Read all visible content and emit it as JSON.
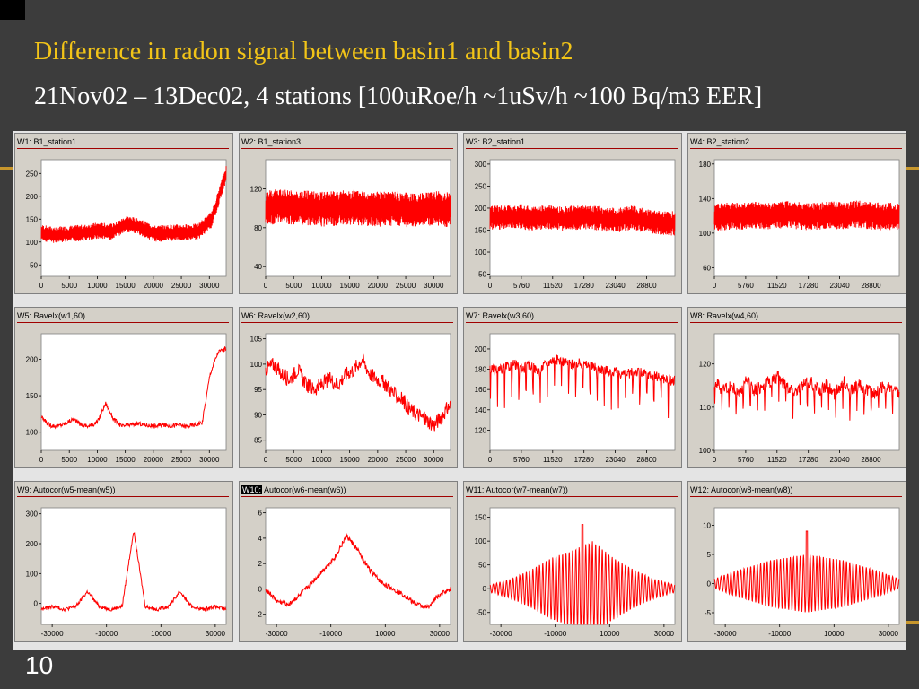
{
  "slide": {
    "title": "Difference in radon signal between basin1 and basin2",
    "subtitle": "21Nov02 – 13Dec02, 4 stations  [100uRoe/h ~1uSv/h ~100 Bq/m3 EER]",
    "page_number": "10"
  },
  "colors": {
    "background": "#3c3c3c",
    "title": "#f2c418",
    "series": "#ff0000",
    "frame": "#d4d0c8"
  },
  "chart_data": [
    {
      "type": "line",
      "title_prefix": "W1:",
      "title": "B1_station1",
      "selected": false,
      "xlim": [
        0,
        33000
      ],
      "ylim": [
        25,
        280
      ],
      "xticks": [
        0,
        5000,
        10000,
        15000,
        20000,
        25000,
        30000
      ],
      "yticks": [
        50,
        100,
        150,
        200,
        250
      ],
      "style": "band",
      "y": [
        120,
        115,
        118,
        120,
        125,
        122,
        140,
        132,
        118,
        120,
        121,
        122,
        150,
        250
      ],
      "noise": 18
    },
    {
      "type": "line",
      "title_prefix": "W2:",
      "title": "B1_station3",
      "selected": false,
      "xlim": [
        0,
        33000
      ],
      "ylim": [
        30,
        150
      ],
      "xticks": [
        0,
        5000,
        10000,
        15000,
        20000,
        25000,
        30000
      ],
      "yticks": [
        40,
        80,
        120
      ],
      "style": "band",
      "y": [
        100,
        102,
        101,
        100,
        99,
        100,
        101,
        100,
        99,
        100,
        98,
        99,
        100,
        98
      ],
      "noise": 18
    },
    {
      "type": "line",
      "title_prefix": "W3:",
      "title": "B2_station1",
      "selected": false,
      "xlim": [
        0,
        34000
      ],
      "ylim": [
        45,
        310
      ],
      "xticks": [
        0,
        5760,
        11520,
        17280,
        23040,
        28800
      ],
      "yticks": [
        50,
        100,
        150,
        200,
        250,
        300
      ],
      "style": "band",
      "y": [
        180,
        178,
        182,
        175,
        180,
        176,
        178,
        180,
        175,
        172,
        178,
        170,
        168,
        165
      ],
      "noise": 28
    },
    {
      "type": "line",
      "title_prefix": "W4:",
      "title": "B2_station2",
      "selected": false,
      "xlim": [
        0,
        34000
      ],
      "ylim": [
        50,
        185
      ],
      "xticks": [
        0,
        5760,
        11520,
        17280,
        23040,
        28800
      ],
      "yticks": [
        60,
        100,
        140,
        180
      ],
      "style": "band",
      "y": [
        118,
        120,
        119,
        121,
        120,
        122,
        120,
        119,
        121,
        120,
        122,
        120,
        119,
        120
      ],
      "noise": 16
    },
    {
      "type": "line",
      "title_prefix": "W5:",
      "title": "Ravelx(w1,60)",
      "selected": false,
      "xlim": [
        0,
        33000
      ],
      "ylim": [
        75,
        235
      ],
      "xticks": [
        0,
        5000,
        10000,
        15000,
        20000,
        25000,
        30000
      ],
      "yticks": [
        100,
        150,
        200
      ],
      "style": "line",
      "y": [
        120,
        110,
        108,
        112,
        118,
        110,
        108,
        114,
        140,
        118,
        108,
        110,
        112,
        110,
        108,
        110,
        109,
        110,
        108,
        110,
        112,
        180,
        210,
        215
      ],
      "noise": 3
    },
    {
      "type": "line",
      "title_prefix": "W6:",
      "title": "Ravelx(w2,60)",
      "selected": false,
      "xlim": [
        0,
        33000
      ],
      "ylim": [
        83,
        106
      ],
      "xticks": [
        0,
        5000,
        10000,
        15000,
        20000,
        25000,
        30000
      ],
      "yticks": [
        85,
        90,
        95,
        100,
        105
      ],
      "style": "line",
      "y": [
        99,
        100,
        98,
        97,
        99,
        96,
        95,
        96,
        97,
        96,
        98,
        99,
        101,
        98,
        97,
        96,
        94,
        93,
        91,
        90,
        89,
        88,
        90,
        92
      ],
      "noise": 1.5
    },
    {
      "type": "line",
      "title_prefix": "W7:",
      "title": "Ravelx(w3,60)",
      "selected": false,
      "xlim": [
        0,
        34000
      ],
      "ylim": [
        100,
        215
      ],
      "xticks": [
        0,
        5760,
        11520,
        17280,
        23040,
        28800
      ],
      "yticks": [
        120,
        140,
        160,
        180,
        200
      ],
      "style": "line",
      "y": [
        180,
        178,
        182,
        185,
        180,
        184,
        178,
        186,
        190,
        188,
        185,
        186,
        184,
        182,
        180,
        178,
        176,
        175,
        178,
        176,
        174,
        172,
        170,
        168
      ],
      "noise": 5,
      "dips": 26,
      "dip_depth": 40
    },
    {
      "type": "line",
      "title_prefix": "W8:",
      "title": "Ravelx(w4,60)",
      "selected": false,
      "xlim": [
        0,
        34000
      ],
      "ylim": [
        100,
        127
      ],
      "xticks": [
        0,
        5760,
        11520,
        17280,
        23040,
        28800
      ],
      "yticks": [
        100,
        110,
        120
      ],
      "style": "line",
      "y": [
        116,
        114,
        115,
        113,
        116,
        114,
        115,
        116,
        117,
        115,
        114,
        115,
        116,
        114,
        115,
        113,
        116,
        114,
        115,
        114,
        113,
        115,
        114,
        113
      ],
      "noise": 1.5,
      "dips": 26,
      "dip_depth": 7
    },
    {
      "type": "line",
      "title_prefix": "W9:",
      "title": "Autocor(w5-mean(w5))",
      "selected": false,
      "xlim": [
        -34000,
        34000
      ],
      "ylim": [
        -70,
        320
      ],
      "xticks": [
        -30000,
        -10000,
        10000,
        30000
      ],
      "yticks": [
        0,
        100,
        200,
        300
      ],
      "style": "line",
      "y": [
        -20,
        -10,
        -20,
        -10,
        40,
        -10,
        -20,
        -10,
        245,
        -10,
        -20,
        -10,
        40,
        -10,
        -20,
        -10,
        -20
      ],
      "noise": 6
    },
    {
      "type": "line",
      "title_prefix": "W10:",
      "title": "Autocor(w6-mean(w6))",
      "selected": true,
      "xlim": [
        -34000,
        34000
      ],
      "ylim": [
        -2.8,
        6.4
      ],
      "xticks": [
        -30000,
        -10000,
        10000,
        30000
      ],
      "yticks": [
        -2,
        0,
        2,
        4,
        6
      ],
      "style": "line",
      "y": [
        0,
        -1,
        -1.2,
        -0.5,
        0.5,
        1.5,
        2.5,
        4.2,
        3,
        1.5,
        0.5,
        0,
        -0.5,
        -1.2,
        -1.5,
        -0.5,
        0
      ],
      "noise": 0.2
    },
    {
      "type": "line",
      "title_prefix": "W11:",
      "title": "Autocor(w7-mean(w7))",
      "selected": false,
      "xlim": [
        -34000,
        34000
      ],
      "ylim": [
        -75,
        170
      ],
      "xticks": [
        -30000,
        -10000,
        10000,
        30000
      ],
      "yticks": [
        -50,
        0,
        50,
        100,
        150
      ],
      "style": "osc",
      "amp": [
        8,
        20,
        40,
        65,
        80,
        100,
        65,
        40,
        20,
        8
      ],
      "peak": 135,
      "cycles": 56
    },
    {
      "type": "line",
      "title_prefix": "W12:",
      "title": "Autocor(w8-mean(w8))",
      "selected": false,
      "xlim": [
        -34000,
        34000
      ],
      "ylim": [
        -7,
        13
      ],
      "xticks": [
        -30000,
        -10000,
        10000,
        30000
      ],
      "yticks": [
        -5,
        0,
        5,
        10
      ],
      "style": "osc",
      "amp": [
        0.8,
        2,
        3,
        4,
        4.5,
        5,
        4.5,
        4,
        3,
        2,
        0.8
      ],
      "peak": 9,
      "cycles": 56
    }
  ]
}
